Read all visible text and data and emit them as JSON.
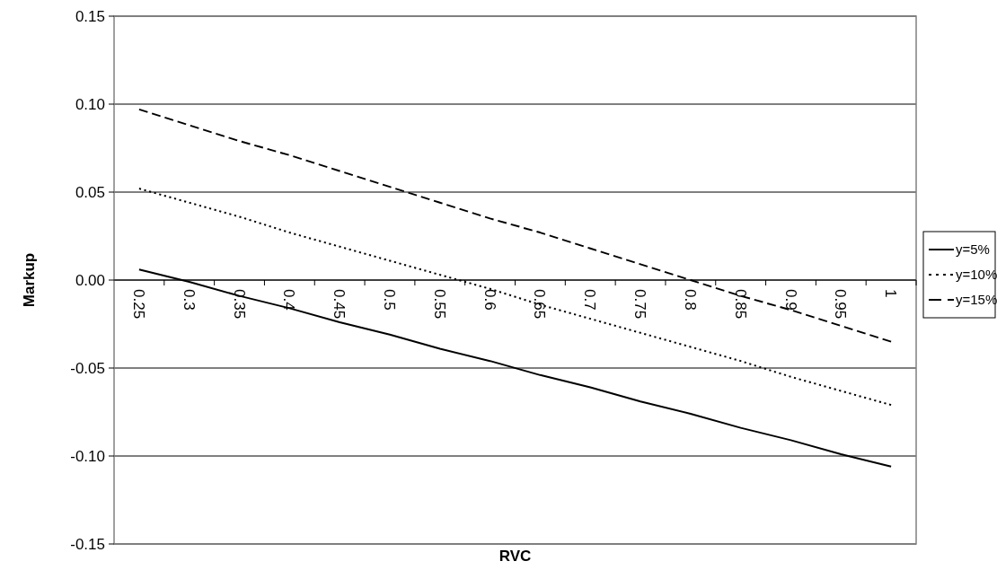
{
  "chart_data": {
    "type": "line",
    "xlabel": "RVC",
    "ylabel": "Markup",
    "categories": [
      "0.25",
      "0.3",
      "0.35",
      "0.4",
      "0.45",
      "0.5",
      "0.55",
      "0.6",
      "0.65",
      "0.7",
      "0.75",
      "0.8",
      "0.85",
      "0.9",
      "0.95",
      "1"
    ],
    "series": [
      {
        "name": "y=5%",
        "color": "#000000",
        "line_style": "solid",
        "values": [
          0.006,
          -0.001,
          -0.009,
          -0.016,
          -0.024,
          -0.031,
          -0.039,
          -0.046,
          -0.054,
          -0.061,
          -0.069,
          -0.076,
          -0.084,
          -0.091,
          -0.099,
          -0.106
        ]
      },
      {
        "name": "y=10%",
        "color": "#000000",
        "line_style": "dotted",
        "values": [
          0.052,
          0.044,
          0.036,
          0.027,
          0.019,
          0.011,
          0.003,
          -0.005,
          -0.014,
          -0.022,
          -0.03,
          -0.038,
          -0.046,
          -0.055,
          -0.063,
          -0.071
        ]
      },
      {
        "name": "y=15%",
        "color": "#000000",
        "line_style": "dashed",
        "values": [
          0.097,
          0.088,
          0.079,
          0.071,
          0.062,
          0.053,
          0.044,
          0.035,
          0.027,
          0.018,
          0.009,
          0.0,
          -0.009,
          -0.017,
          -0.026,
          -0.035
        ]
      }
    ],
    "ylim": [
      -0.15,
      0.15
    ],
    "yticks": [
      {
        "value": -0.15,
        "label": "-0.15"
      },
      {
        "value": -0.1,
        "label": "-0.10"
      },
      {
        "value": -0.05,
        "label": "-0.05"
      },
      {
        "value": 0,
        "label": "0.00"
      },
      {
        "value": 0.05,
        "label": "0.05"
      },
      {
        "value": 0.1,
        "label": "0.10"
      },
      {
        "value": 0.15,
        "label": "0.15"
      }
    ],
    "grid": "y",
    "legend": "right",
    "marker": "none"
  }
}
